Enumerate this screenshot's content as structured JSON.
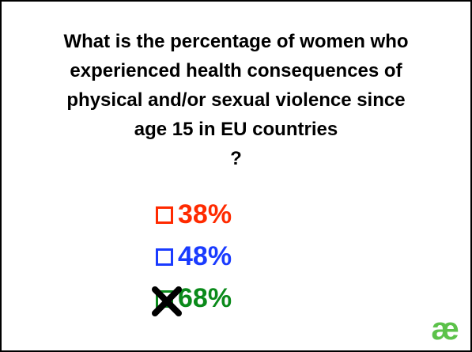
{
  "question": {
    "lines": [
      "What is the percentage of women who",
      "experienced health consequences of",
      "physical and/or sexual violence since",
      "age 15 in EU countries",
      "?"
    ]
  },
  "options": [
    {
      "label": "38%",
      "color": "#ff2a00",
      "checked": false
    },
    {
      "label": "48%",
      "color": "#1a3bff",
      "checked": false
    },
    {
      "label": "68%",
      "color": "#0a8a1a",
      "checked": true
    }
  ],
  "logo": {
    "text": "æ",
    "color": "#5cc24a"
  }
}
